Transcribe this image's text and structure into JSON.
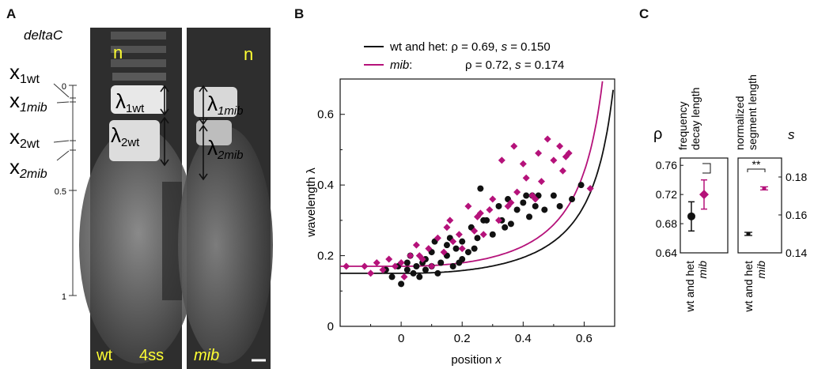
{
  "panels": {
    "a": "A",
    "b": "B",
    "c": "C"
  },
  "panel_a": {
    "gene": "deltaC",
    "x_labels": {
      "x1wt_main": "x",
      "x1wt_sub": "1wt",
      "x1mib_main": "x",
      "x1mib_sub": "1mib",
      "x2wt_main": "x",
      "x2wt_sub": "2wt",
      "x2mib_main": "x",
      "x2mib_sub": "2mib"
    },
    "scale_ticks": [
      "0",
      "0.5",
      "1"
    ],
    "n_left": "n",
    "n_right": "n",
    "lambda_1wt_sub": "1wt",
    "lambda_2wt_sub": "2wt",
    "lambda_1mib_sub": "1mib",
    "lambda_2mib_sub": "2mib",
    "lambda": "λ",
    "label_wt": "wt",
    "label_stage": "4ss",
    "label_mib": "mib",
    "colors": {
      "yellow": "#ffff33",
      "embryo": "#4a4a4a"
    }
  },
  "panel_b": {
    "legend": [
      {
        "name_plain": "wt and het:",
        "rho": "ρ = 0.69, ",
        "s_label": "s",
        "s_val": " = 0.150",
        "color": "#111111"
      },
      {
        "name_italic": "mib",
        "name_tail": ":",
        "rho": "ρ = 0.72, ",
        "s_label": "s",
        "s_val": " = 0.174",
        "color": "#b5127a"
      }
    ],
    "xlabel": "position ",
    "xlabel_var": "x",
    "ylabel": "wavelength λ",
    "xticks": [
      "0",
      "0.2",
      "0.4",
      "0.6"
    ],
    "yticks": [
      "0",
      "0.2",
      "0.4",
      "0.6"
    ]
  },
  "panel_c": {
    "rho_symbol": "ρ",
    "s_symbol": "s",
    "col1_title_line1": "frequency",
    "col1_title_line2": "decay length",
    "col2_title_line1": "normalized",
    "col2_title_line2": "segment length",
    "yticks_left": [
      "0.76",
      "0.72",
      "0.68",
      "0.64"
    ],
    "yticks_right": [
      "0.18",
      "0.16",
      "0.14"
    ],
    "sig": "**",
    "xcat_wt": "wt and het",
    "xcat_mib": "mib"
  },
  "chart_data": {
    "type": "scatter",
    "xlabel": "position x",
    "ylabel": "wavelength λ",
    "xlim": [
      -0.2,
      0.7
    ],
    "ylim": [
      0,
      0.7
    ],
    "grid": false,
    "legend_placement": "top-left",
    "series": [
      {
        "name": "wt and het",
        "color": "#111111",
        "marker": "circle",
        "fit": {
          "lambda0": 0.15,
          "rho": 0.69,
          "s": 0.15
        },
        "x": [
          -0.05,
          -0.03,
          -0.01,
          0.0,
          0.02,
          0.02,
          0.04,
          0.05,
          0.06,
          0.08,
          0.08,
          0.1,
          0.1,
          0.12,
          0.13,
          0.15,
          0.15,
          0.17,
          0.18,
          0.2,
          0.2,
          0.22,
          0.23,
          0.25,
          0.26,
          0.28,
          0.3,
          0.32,
          0.33,
          0.35,
          0.36,
          0.38,
          0.4,
          0.41,
          0.42,
          0.44,
          0.45,
          0.47,
          0.5,
          0.52,
          0.56,
          0.59,
          0.03,
          0.07,
          0.11,
          0.16,
          0.19,
          0.24,
          0.27,
          0.34,
          0.43
        ],
        "y": [
          0.16,
          0.14,
          0.17,
          0.12,
          0.16,
          0.18,
          0.15,
          0.17,
          0.14,
          0.19,
          0.16,
          0.17,
          0.21,
          0.15,
          0.18,
          0.2,
          0.23,
          0.17,
          0.22,
          0.24,
          0.19,
          0.21,
          0.28,
          0.25,
          0.39,
          0.3,
          0.26,
          0.34,
          0.3,
          0.36,
          0.29,
          0.33,
          0.35,
          0.37,
          0.31,
          0.34,
          0.37,
          0.33,
          0.37,
          0.34,
          0.36,
          0.4,
          0.2,
          0.18,
          0.24,
          0.25,
          0.18,
          0.22,
          0.3,
          0.28,
          0.37
        ]
      },
      {
        "name": "mib",
        "color": "#b5127a",
        "marker": "diamond",
        "fit": {
          "lambda0": 0.17,
          "rho": 0.72,
          "s": 0.174
        },
        "x": [
          -0.12,
          -0.1,
          -0.08,
          -0.06,
          -0.04,
          -0.02,
          0.0,
          0.01,
          0.03,
          0.05,
          0.07,
          0.09,
          0.1,
          0.12,
          0.14,
          0.15,
          0.17,
          0.19,
          0.2,
          0.22,
          0.24,
          0.25,
          0.27,
          0.29,
          0.3,
          0.32,
          0.33,
          0.35,
          0.37,
          0.38,
          0.4,
          0.41,
          0.43,
          0.45,
          0.46,
          0.48,
          0.5,
          0.52,
          0.53,
          0.55,
          0.62,
          -0.18,
          0.06,
          0.16,
          0.26,
          0.36,
          0.44,
          0.54
        ],
        "y": [
          0.17,
          0.15,
          0.18,
          0.16,
          0.19,
          0.17,
          0.18,
          0.14,
          0.2,
          0.23,
          0.19,
          0.22,
          0.17,
          0.25,
          0.21,
          0.28,
          0.24,
          0.26,
          0.22,
          0.34,
          0.27,
          0.31,
          0.26,
          0.33,
          0.36,
          0.3,
          0.47,
          0.34,
          0.51,
          0.38,
          0.46,
          0.42,
          0.37,
          0.49,
          0.41,
          0.53,
          0.47,
          0.51,
          0.44,
          0.49,
          0.39,
          0.17,
          0.2,
          0.3,
          0.32,
          0.35,
          0.36,
          0.48
        ]
      }
    ],
    "summary_panels": [
      {
        "title": "frequency decay length",
        "ylabel": "ρ",
        "ylim": [
          0.64,
          0.77
        ],
        "points": [
          {
            "category": "wt and het",
            "value": 0.69,
            "err": 0.02,
            "color": "#111111"
          },
          {
            "category": "mib",
            "value": 0.72,
            "err": 0.02,
            "color": "#b5127a"
          }
        ]
      },
      {
        "title": "normalized segment length",
        "ylabel": "s",
        "ylim": [
          0.14,
          0.19
        ],
        "annotation": "**",
        "points": [
          {
            "category": "wt and het",
            "value": 0.15,
            "err": 0.001,
            "color": "#111111"
          },
          {
            "category": "mib",
            "value": 0.174,
            "err": 0.001,
            "color": "#b5127a"
          }
        ]
      }
    ]
  }
}
